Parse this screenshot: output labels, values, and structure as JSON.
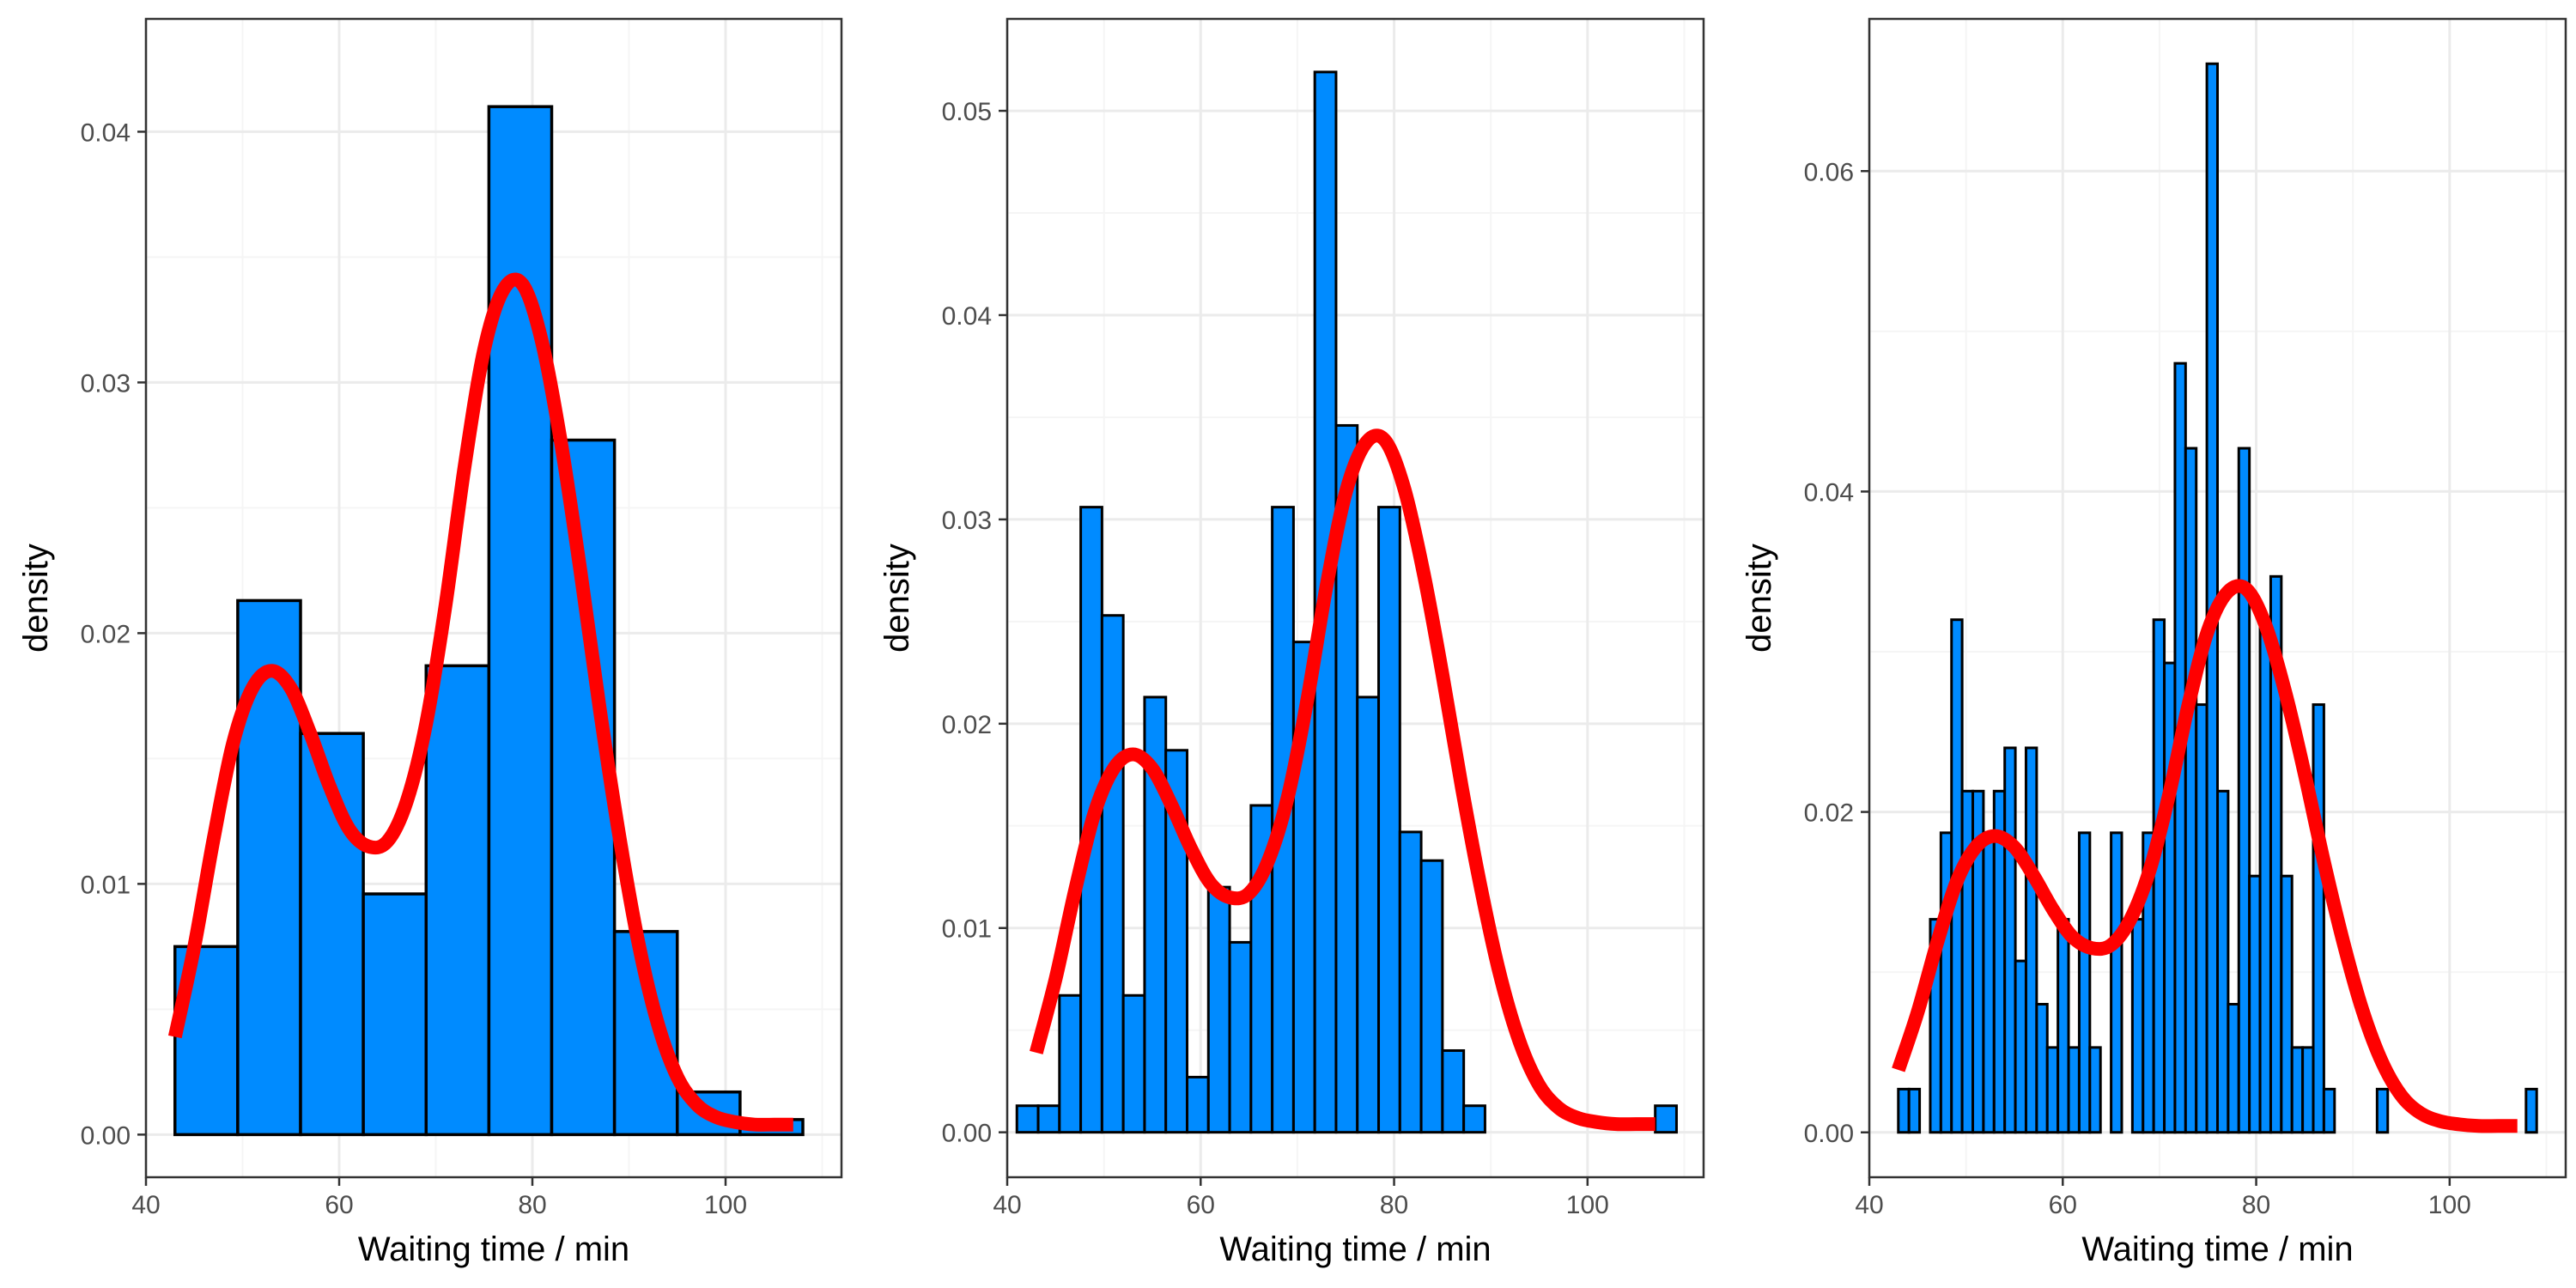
{
  "colors": {
    "bar_fill": "#008BFF",
    "bar_stroke": "#000000",
    "curve": "#FF0000",
    "grid_major": "#EBEBEB",
    "grid_minor": "#F5F5F5",
    "panel_border": "#333333",
    "tick_text": "#4D4D4D"
  },
  "chart_data": [
    {
      "type": "bar",
      "subtype": "histogram with density curve",
      "xlabel": "Waiting time / min",
      "ylabel": "density",
      "xlim": [
        40,
        112
      ],
      "ylim": [
        -0.0017,
        0.0445
      ],
      "xticks": [
        40,
        60,
        80,
        100
      ],
      "yticks": [
        0.0,
        0.01,
        0.02,
        0.03,
        0.04
      ],
      "ytick_labels": [
        "0.00",
        "0.01",
        "0.02",
        "0.03",
        "0.04"
      ],
      "x_minor_gridlines": [
        50,
        70,
        90,
        110
      ],
      "y_minor_gridlines": [
        0.005,
        0.015,
        0.025,
        0.035
      ],
      "grid": true,
      "bin_edges": [
        43.0,
        49.5,
        56.0,
        62.5,
        69.0,
        75.5,
        82.0,
        88.5,
        95.0,
        101.5,
        108.0
      ],
      "values": [
        0.0075,
        0.0213,
        0.016,
        0.0096,
        0.0187,
        0.041,
        0.0277,
        0.0081,
        0.0017,
        0.0006
      ],
      "density_curve": {
        "x": [
          43,
          45,
          47,
          49,
          51,
          53,
          55,
          57,
          59,
          61,
          63,
          65,
          67,
          69,
          71,
          73,
          75,
          77,
          79,
          81,
          83,
          85,
          87,
          89,
          91,
          93,
          95,
          97,
          99,
          101,
          103,
          105,
          107
        ],
        "y": [
          0.0039,
          0.0075,
          0.0118,
          0.0156,
          0.0178,
          0.0185,
          0.0178,
          0.016,
          0.0139,
          0.0122,
          0.0115,
          0.0117,
          0.0133,
          0.0164,
          0.0211,
          0.0267,
          0.0313,
          0.0337,
          0.0339,
          0.0316,
          0.0275,
          0.0224,
          0.0169,
          0.0119,
          0.0076,
          0.0044,
          0.0023,
          0.0012,
          0.0007,
          0.0005,
          0.0004,
          0.0004,
          0.0004
        ]
      }
    },
    {
      "type": "bar",
      "subtype": "histogram with density curve",
      "xlabel": "Waiting time / min",
      "ylabel": "density",
      "xlim": [
        40,
        112
      ],
      "ylim": [
        -0.0022,
        0.0545
      ],
      "xticks": [
        40,
        60,
        80,
        100
      ],
      "yticks": [
        0.0,
        0.01,
        0.02,
        0.03,
        0.04,
        0.05
      ],
      "ytick_labels": [
        "0.00",
        "0.01",
        "0.02",
        "0.03",
        "0.04",
        "0.05"
      ],
      "x_minor_gridlines": [
        50,
        70,
        90,
        110
      ],
      "y_minor_gridlines": [
        0.005,
        0.015,
        0.025,
        0.035,
        0.045
      ],
      "grid": true,
      "bin_edges": [
        41.0,
        43.2,
        45.4,
        47.6,
        49.8,
        52.0,
        54.2,
        56.4,
        58.6,
        60.8,
        63.0,
        65.2,
        67.4,
        69.6,
        71.8,
        74.0,
        76.2,
        78.4,
        80.6,
        82.8,
        85.0,
        87.2,
        89.4,
        91.6,
        93.8,
        96.0,
        98.2,
        100.4,
        102.6,
        104.8,
        107.0,
        109.2
      ],
      "values": [
        0.0013,
        0.0013,
        0.0067,
        0.0306,
        0.0253,
        0.0067,
        0.0213,
        0.0187,
        0.0027,
        0.012,
        0.0093,
        0.016,
        0.0306,
        0.024,
        0.0519,
        0.0346,
        0.0213,
        0.0306,
        0.0147,
        0.0133,
        0.004,
        0.0013,
        0.0,
        0.0,
        0.0,
        0.0,
        0.0,
        0.0,
        0.0,
        0.0,
        0.0013
      ],
      "density_curve": {
        "x": [
          43,
          45,
          47,
          49,
          51,
          53,
          55,
          57,
          59,
          61,
          63,
          65,
          67,
          69,
          71,
          73,
          75,
          77,
          79,
          81,
          83,
          85,
          87,
          89,
          91,
          93,
          95,
          97,
          99,
          101,
          103,
          105,
          107
        ],
        "y": [
          0.0039,
          0.0075,
          0.0118,
          0.0156,
          0.0178,
          0.0185,
          0.0178,
          0.016,
          0.0139,
          0.0122,
          0.0115,
          0.0117,
          0.0133,
          0.0164,
          0.0211,
          0.0267,
          0.0313,
          0.0337,
          0.0339,
          0.0316,
          0.0275,
          0.0224,
          0.0169,
          0.0119,
          0.0076,
          0.0044,
          0.0023,
          0.0012,
          0.0007,
          0.0005,
          0.0004,
          0.0004,
          0.0004
        ]
      }
    },
    {
      "type": "bar",
      "subtype": "histogram with density curve",
      "xlabel": "Waiting time / min",
      "ylabel": "density",
      "xlim": [
        40,
        112
      ],
      "ylim": [
        -0.0028,
        0.0695
      ],
      "xticks": [
        40,
        60,
        80,
        100
      ],
      "yticks": [
        0.0,
        0.02,
        0.04,
        0.06
      ],
      "ytick_labels": [
        "0.00",
        "0.02",
        "0.04",
        "0.06"
      ],
      "x_minor_gridlines": [
        50,
        70,
        90,
        110
      ],
      "y_minor_gridlines": [
        0.01,
        0.03,
        0.05
      ],
      "grid": true,
      "bin_edges": [
        43.0,
        44.1,
        45.2,
        46.3,
        47.4,
        48.5,
        49.6,
        50.7,
        51.8,
        52.9,
        54.0,
        55.1,
        56.2,
        57.3,
        58.4,
        59.5,
        60.6,
        61.7,
        62.8,
        63.9,
        65.0,
        66.1,
        67.2,
        68.3,
        69.4,
        70.5,
        71.6,
        72.7,
        73.8,
        74.9,
        76.0,
        77.1,
        78.2,
        79.3,
        80.4,
        81.5,
        82.6,
        83.7,
        84.8,
        85.9,
        87.0,
        88.1,
        89.2,
        90.3,
        91.4,
        92.5,
        93.6,
        94.7,
        95.8,
        96.9,
        98.0,
        99.1,
        100.2,
        101.3,
        102.4,
        103.5,
        104.6,
        105.7,
        106.8,
        107.9,
        109.0
      ],
      "values": [
        0.0027,
        0.0027,
        0.0,
        0.0133,
        0.0187,
        0.032,
        0.0213,
        0.0213,
        0.0187,
        0.0213,
        0.024,
        0.0107,
        0.024,
        0.008,
        0.0053,
        0.0133,
        0.0053,
        0.0187,
        0.0053,
        0.0,
        0.0187,
        0.0,
        0.0133,
        0.0187,
        0.032,
        0.0293,
        0.048,
        0.0427,
        0.0267,
        0.0667,
        0.0213,
        0.008,
        0.0427,
        0.016,
        0.032,
        0.0347,
        0.016,
        0.0053,
        0.0053,
        0.0267,
        0.0027,
        0.0,
        0.0,
        0.0,
        0.0,
        0.0027,
        0.0,
        0.0,
        0.0,
        0.0,
        0.0,
        0.0,
        0.0,
        0.0,
        0.0,
        0.0,
        0.0,
        0.0,
        0.0,
        0.0027
      ],
      "density_curve": {
        "x": [
          43,
          45,
          47,
          49,
          51,
          53,
          55,
          57,
          59,
          61,
          63,
          65,
          67,
          69,
          71,
          73,
          75,
          77,
          79,
          81,
          83,
          85,
          87,
          89,
          91,
          93,
          95,
          97,
          99,
          101,
          103,
          105,
          107
        ],
        "y": [
          0.0039,
          0.0075,
          0.0118,
          0.0156,
          0.0178,
          0.0185,
          0.0178,
          0.016,
          0.0139,
          0.0122,
          0.0115,
          0.0117,
          0.0133,
          0.0164,
          0.0211,
          0.0267,
          0.0313,
          0.0337,
          0.0339,
          0.0316,
          0.0275,
          0.0224,
          0.0169,
          0.0119,
          0.0076,
          0.0044,
          0.0023,
          0.0012,
          0.0007,
          0.0005,
          0.0004,
          0.0004,
          0.0004
        ]
      }
    }
  ]
}
